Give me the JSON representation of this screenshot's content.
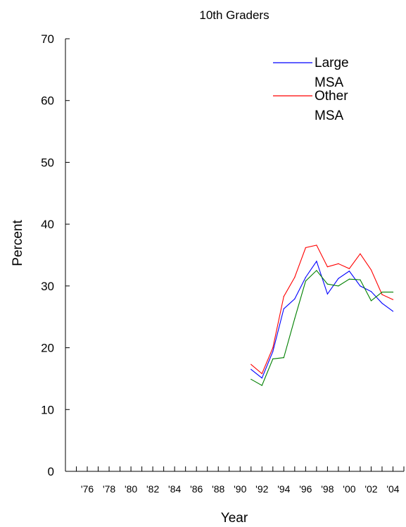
{
  "chart_data": {
    "type": "line",
    "title": "10th Graders",
    "xlabel": "Year",
    "ylabel": "Percent",
    "xlim": [
      1974,
      2005
    ],
    "ylim": [
      0,
      70
    ],
    "y_ticks": [
      0,
      10,
      20,
      30,
      40,
      50,
      60,
      70
    ],
    "x_minor_ticks": [
      1975,
      1976,
      1977,
      1978,
      1979,
      1980,
      1981,
      1982,
      1983,
      1984,
      1985,
      1986,
      1987,
      1988,
      1989,
      1990,
      1991,
      1992,
      1993,
      1994,
      1995,
      1996,
      1997,
      1998,
      1999,
      2000,
      2001,
      2002,
      2003,
      2004,
      2005
    ],
    "x_tick_labels": [
      {
        "x": 1976,
        "label": "'76"
      },
      {
        "x": 1978,
        "label": "'78"
      },
      {
        "x": 1980,
        "label": "'80"
      },
      {
        "x": 1982,
        "label": "'82"
      },
      {
        "x": 1984,
        "label": "'84"
      },
      {
        "x": 1986,
        "label": "'86"
      },
      {
        "x": 1988,
        "label": "'88"
      },
      {
        "x": 1990,
        "label": "'90"
      },
      {
        "x": 1992,
        "label": "'92"
      },
      {
        "x": 1994,
        "label": "'94"
      },
      {
        "x": 1996,
        "label": "'96"
      },
      {
        "x": 1998,
        "label": "'98"
      },
      {
        "x": 2000,
        "label": "'00"
      },
      {
        "x": 2002,
        "label": "'02"
      },
      {
        "x": 2004,
        "label": "'04"
      }
    ],
    "legend_position": "top-right",
    "grid": false,
    "series": [
      {
        "name": "Large MSA",
        "legend_lines": [
          "Large",
          "MSA"
        ],
        "color": "#0000ff",
        "x": [
          1991,
          1992,
          1993,
          1994,
          1995,
          1996,
          1997,
          1998,
          1999,
          2000,
          2001,
          2002,
          2003,
          2004
        ],
        "values": [
          16.5,
          15.1,
          19.4,
          26.3,
          27.9,
          31.4,
          34.0,
          28.7,
          31.2,
          32.4,
          30.0,
          29.1,
          27.2,
          25.9
        ]
      },
      {
        "name": "Other MSA",
        "legend_lines": [
          "Other",
          "MSA"
        ],
        "color": "#ff0000",
        "x": [
          1991,
          1992,
          1993,
          1994,
          1995,
          1996,
          1997,
          1998,
          1999,
          2000,
          2001,
          2002,
          2003,
          2004
        ],
        "values": [
          17.3,
          15.8,
          20.0,
          28.3,
          31.4,
          36.2,
          36.6,
          33.1,
          33.6,
          32.8,
          35.2,
          32.6,
          28.6,
          27.8
        ]
      },
      {
        "color": "#008000",
        "x": [
          1991,
          1992,
          1993,
          1994,
          1995,
          1996,
          1997,
          1998,
          1999,
          2000,
          2001,
          2002,
          2003,
          2004
        ],
        "values": [
          14.9,
          13.9,
          18.2,
          18.4,
          24.7,
          30.8,
          32.5,
          30.3,
          30.0,
          31.1,
          31.0,
          27.6,
          29.0,
          29.0
        ]
      }
    ]
  }
}
